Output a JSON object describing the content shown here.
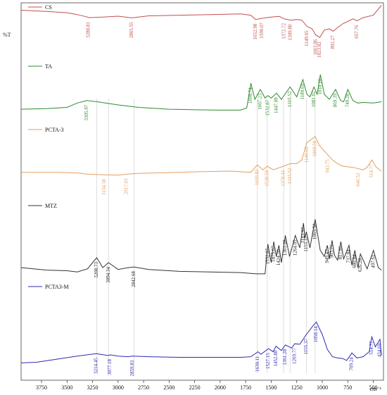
{
  "ylabel": "%T",
  "xunit": "cm⁻¹",
  "chart_data": {
    "type": "line",
    "title": "",
    "xlabel": "cm⁻¹",
    "ylabel": "%T",
    "xlim": [
      3950,
      400
    ],
    "x_reversed": true,
    "xticks": [
      3750,
      3500,
      3250,
      3000,
      2750,
      2500,
      2250,
      2000,
      1750,
      1500,
      1250,
      1000,
      750,
      500
    ],
    "grid": false,
    "legend": "inline-labels-top-left",
    "series": [
      {
        "name": "CS",
        "color": "#c0504d",
        "x": [
          3950,
          3700,
          3500,
          3400,
          3300,
          3288.81,
          3150,
          3000,
          2865.55,
          2700,
          2400,
          2100,
          1800,
          1700,
          1652.98,
          1590.07,
          1500,
          1420,
          1372.72,
          1309.8,
          1250,
          1200,
          1149.65,
          1100,
          1063.86,
          1023.82,
          980,
          930,
          892.27,
          850,
          800,
          700,
          657.76,
          600,
          500,
          420
        ],
        "y": [
          6.0,
          7.0,
          8.0,
          9.5,
          11.5,
          12.0,
          11.5,
          10.8,
          12.2,
          10.5,
          10.0,
          9.5,
          9.0,
          10.0,
          13.5,
          12.5,
          11.5,
          11.0,
          13.0,
          14.0,
          13.5,
          14.0,
          19.0,
          21.0,
          26.0,
          28.0,
          22.0,
          21.0,
          23.0,
          20.0,
          17.0,
          13.0,
          14.5,
          12.0,
          10.0,
          2.0
        ]
      },
      {
        "name": "TA",
        "color": "#2e8b2e",
        "x": [
          3950,
          3700,
          3500,
          3400,
          3305.97,
          3200,
          3000,
          2800,
          2500,
          2200,
          2000,
          1800,
          1740,
          1698.74,
          1660,
          1607.23,
          1560,
          1532.87,
          1500,
          1447.08,
          1400,
          1315.52,
          1250,
          1189.69,
          1150,
          1120,
          1081.02,
          1050,
          1018.1,
          980,
          930,
          869.39,
          820,
          790,
          749.28,
          700,
          650,
          600,
          500,
          420
        ],
        "y": [
          86.0,
          85.5,
          84.5,
          81.0,
          79.0,
          80.0,
          82.5,
          84.5,
          86.0,
          86.5,
          86.7,
          86.7,
          85.0,
          65.0,
          78.0,
          70.0,
          77.0,
          75.0,
          77.0,
          73.0,
          78.0,
          68.0,
          76.0,
          62.0,
          74.0,
          76.0,
          68.0,
          74.0,
          58.0,
          74.0,
          78.0,
          70.0,
          79.0,
          80.0,
          70.0,
          79.0,
          81.0,
          80.5,
          81.0,
          80.0
        ]
      },
      {
        "name": "PCTA-3",
        "color": "#e3a05f",
        "x": [
          3950,
          3600,
          3400,
          3300,
          3134.38,
          3000,
          2917.03,
          2800,
          2500,
          2200,
          1900,
          1700,
          1635.83,
          1580,
          1538.59,
          1480,
          1378.44,
          1315.52,
          1250,
          1200,
          1149.65,
          1100,
          1069.58,
          1030,
          1000,
          943.75,
          900,
          850,
          800,
          700,
          646.52,
          600,
          560,
          514.77,
          470,
          420
        ],
        "y": [
          137.0,
          137.0,
          137.5,
          138.5,
          139.0,
          139.3,
          138.5,
          137.8,
          137.2,
          136.5,
          136.0,
          137.0,
          131.0,
          135.0,
          132.0,
          135.0,
          132.0,
          130.0,
          130.0,
          127.0,
          113.0,
          110.0,
          108.0,
          115.0,
          118.0,
          123.0,
          127.0,
          130.0,
          132.0,
          133.0,
          134.0,
          135.0,
          133.0,
          127.0,
          133.0,
          136.0
        ]
      },
      {
        "name": "MTZ",
        "color": "#333333",
        "x": [
          3950,
          3700,
          3500,
          3400,
          3300,
          3208.73,
          3150,
          3094.34,
          3000,
          2900,
          2842.68,
          2700,
          2400,
          2100,
          1800,
          1650,
          1560,
          1532.87,
          1500,
          1475.67,
          1450,
          1424.2,
          1400,
          1361.28,
          1320,
          1264.05,
          1220,
          1183.97,
          1170,
          1155.37,
          1120,
          1069.58,
          1020,
          980,
          949.47,
          930,
          903.71,
          880,
          850,
          817.91,
          790,
          737.84,
          710,
          680.84,
          650,
          626.28,
          560,
          497.61,
          450,
          420
        ],
        "y": [
          214.0,
          216.0,
          216.5,
          217.5,
          215.0,
          206.0,
          214.0,
          210.0,
          215.5,
          214.0,
          213.5,
          215.5,
          217.0,
          217.5,
          218.0,
          219.0,
          219.0,
          195.0,
          210.0,
          193.0,
          205.0,
          196.0,
          210.0,
          188.0,
          205.0,
          188.0,
          198.0,
          178.0,
          190.0,
          185.0,
          198.0,
          175.0,
          200.0,
          205.0,
          196.0,
          207.0,
          192.0,
          204.0,
          208.0,
          193.0,
          207.0,
          196.0,
          212.0,
          200.0,
          214.0,
          203.0,
          215.0,
          200.0,
          214.0,
          216.0
        ]
      },
      {
        "name": "PCTA3-M",
        "color": "#2b2bb0",
        "x": [
          3950,
          3800,
          3600,
          3400,
          3214.45,
          3100,
          3077.18,
          3000,
          2900,
          2859.83,
          2700,
          2400,
          2100,
          1800,
          1700,
          1630.11,
          1600,
          1527.15,
          1480,
          1452.8,
          1400,
          1361.28,
          1300,
          1269.77,
          1220,
          1155.37,
          1100,
          1058.14,
          1000,
          950,
          900,
          850,
          800,
          760,
          709.24,
          660,
          600,
          540,
          514.77,
          480,
          434.69,
          420
        ],
        "y": [
          291.0,
          290.5,
          288.0,
          285.5,
          283.5,
          285.0,
          284.5,
          285.5,
          286.0,
          285.5,
          286.0,
          286.5,
          286.5,
          286.5,
          286.0,
          282.0,
          284.0,
          279.5,
          282.0,
          277.5,
          281.0,
          276.5,
          279.0,
          275.5,
          276.0,
          268.0,
          262.0,
          258.0,
          268.0,
          280.0,
          286.0,
          287.0,
          287.5,
          289.0,
          283.0,
          287.0,
          286.0,
          282.0,
          270.0,
          278.0,
          272.0,
          285.0
        ]
      }
    ],
    "annotations": [
      {
        "series": "CS",
        "labels": [
          "3288.81",
          "2865.55",
          "1652.98",
          "1590.07",
          "1372.72",
          "1309.80",
          "1149.65",
          "1063.86",
          "1023.82",
          "892.27",
          "657.76"
        ],
        "x": [
          3288.81,
          2865.55,
          1652.98,
          1590.07,
          1372.72,
          1309.8,
          1149.65,
          1063.86,
          1023.82,
          892.27,
          657.76
        ]
      },
      {
        "series": "TA",
        "labels": [
          "3305.97",
          "1698.74",
          "1607.23",
          "1532.87",
          "1447.08",
          "1315.52",
          "1189.69",
          "1081.02",
          "1018.10",
          "869.39",
          "749.28"
        ],
        "x": [
          3305.97,
          1698.74,
          1607.23,
          1532.87,
          1447.08,
          1315.52,
          1189.69,
          1081.02,
          1018.1,
          869.39,
          749.28
        ]
      },
      {
        "series": "PCTA-3",
        "labels": [
          "3134.38",
          "2917.03",
          "1635.83",
          "1538.59",
          "1378.44",
          "1315.52",
          "1149.65",
          "1069.58",
          "943.75",
          "646.52",
          "514.77"
        ],
        "x": [
          3134.38,
          2917.03,
          1635.83,
          1538.59,
          1378.44,
          1315.52,
          1149.65,
          1069.58,
          943.75,
          646.52,
          514.77
        ]
      },
      {
        "series": "MTZ",
        "labels": [
          "3208.73",
          "3094.34",
          "2842.68",
          "1532.87",
          "1475.67",
          "1424.20",
          "1361.28",
          "1264.05",
          "1183.97",
          "1155.37",
          "1069.58",
          "949.47",
          "903.71",
          "817.91",
          "737.84",
          "680.84",
          "626.28",
          "497.61"
        ],
        "x": [
          3208.73,
          3094.34,
          2842.68,
          1532.87,
          1475.67,
          1424.2,
          1361.28,
          1264.05,
          1183.97,
          1155.37,
          1069.58,
          949.47,
          903.71,
          817.91,
          737.84,
          680.84,
          626.28,
          497.61
        ]
      },
      {
        "series": "PCTA3-M",
        "labels": [
          "3214.45",
          "3077.18",
          "2859.83",
          "1630.11",
          "1527.15",
          "1452.80",
          "1361.28",
          "1269.77",
          "1155.37",
          "1058.14",
          "709.24",
          "514.77",
          "434.69"
        ],
        "x": [
          3214.45,
          3077.18,
          2859.83,
          1630.11,
          1527.15,
          1452.8,
          1361.28,
          1269.77,
          1155.37,
          1058.14,
          709.24,
          514.77,
          434.69
        ]
      }
    ],
    "reference_lines_x": [
      3208.73,
      3094.34,
      2842.68,
      1635.83,
      1538.59,
      1378.44,
      1315.52,
      1155.37,
      1069.58
    ]
  }
}
